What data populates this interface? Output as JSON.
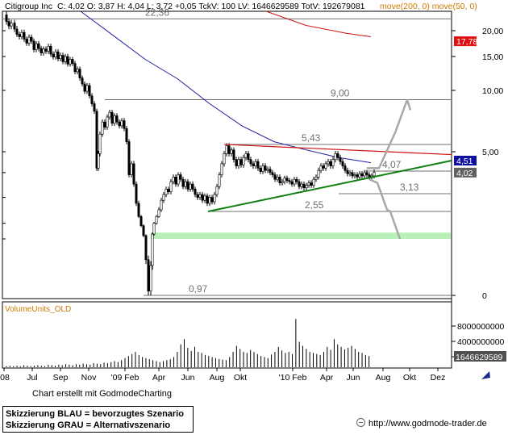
{
  "header": {
    "symbol": "Citigroup Inc",
    "quote": "C: 4,02 O: 3,87 H: 4,04 L: 3,72 +0,05 TckV: 100 LV: 1646629589 TotV: 192679081",
    "indicators": "move(200, 0) move(50, 0)",
    "indicator_color": "#d07a00"
  },
  "chart_data": {
    "type": "candlestick",
    "title": "Citigroup Inc",
    "x_ticks": [
      "'08",
      "Jul",
      "Sep",
      "Nov",
      "'09 Feb",
      "Apr",
      "Jun",
      "Aug",
      "Okt",
      "'10 Feb",
      "Apr",
      "Jun",
      "Aug",
      "Okt",
      "Dez"
    ],
    "y_ticks": [
      "20,00",
      "15,00",
      "10,00",
      "5,00",
      "0"
    ],
    "scale": "log",
    "price_range": [
      0.97,
      24
    ],
    "price_path": [
      [
        0,
        23.2
      ],
      [
        4,
        21.8
      ],
      [
        7,
        20.9
      ],
      [
        10,
        21.5
      ],
      [
        14,
        20.3
      ],
      [
        17,
        19.2
      ],
      [
        20,
        18.7
      ],
      [
        23,
        19.6
      ],
      [
        26,
        18.2
      ],
      [
        29,
        17.4
      ],
      [
        32,
        18.6
      ],
      [
        35,
        17.8
      ],
      [
        38,
        16.2
      ],
      [
        41,
        17.3
      ],
      [
        44,
        16.4
      ],
      [
        47,
        15.6
      ],
      [
        50,
        16.3
      ],
      [
        53,
        15.9
      ],
      [
        56,
        16.8
      ],
      [
        59,
        15.4
      ],
      [
        62,
        14.9
      ],
      [
        65,
        15.8
      ],
      [
        68,
        14.6
      ],
      [
        71,
        15.2
      ],
      [
        74,
        14.1
      ],
      [
        77,
        15.0
      ],
      [
        80,
        13.7
      ],
      [
        83,
        14.5
      ],
      [
        86,
        13.8
      ],
      [
        89,
        12.5
      ],
      [
        92,
        12.9
      ],
      [
        95,
        11.6
      ],
      [
        98,
        10.8
      ],
      [
        101,
        9.9
      ],
      [
        104,
        10.6
      ],
      [
        107,
        9.4
      ],
      [
        110,
        8.6
      ],
      [
        113,
        7.9
      ],
      [
        116,
        4.2
      ],
      [
        118,
        4.9
      ],
      [
        120,
        6.1
      ],
      [
        123,
        7.0
      ],
      [
        126,
        6.6
      ],
      [
        129,
        7.4
      ],
      [
        132,
        7.8
      ],
      [
        135,
        6.9
      ],
      [
        138,
        7.5
      ],
      [
        141,
        7.0
      ],
      [
        144,
        6.7
      ],
      [
        147,
        7.1
      ],
      [
        150,
        6.5
      ],
      [
        153,
        5.6
      ],
      [
        156,
        3.9
      ],
      [
        159,
        4.4
      ],
      [
        162,
        3.5
      ],
      [
        165,
        2.8
      ],
      [
        168,
        2.3
      ],
      [
        171,
        1.9
      ],
      [
        174,
        1.55
      ],
      [
        177,
        1.25
      ],
      [
        180,
        1.0
      ],
      [
        183,
        1.2
      ],
      [
        185,
        1.6
      ],
      [
        187,
        2.0
      ],
      [
        190,
        2.3
      ],
      [
        193,
        2.6
      ],
      [
        196,
        2.9
      ],
      [
        199,
        3.1
      ],
      [
        202,
        3.3
      ],
      [
        205,
        3.2
      ],
      [
        208,
        3.6
      ],
      [
        211,
        3.8
      ],
      [
        214,
        3.5
      ],
      [
        217,
        3.9
      ],
      [
        220,
        3.7
      ],
      [
        223,
        3.4
      ],
      [
        226,
        3.6
      ],
      [
        229,
        3.3
      ],
      [
        232,
        3.5
      ],
      [
        235,
        3.3
      ],
      [
        238,
        3.1
      ],
      [
        241,
        3.0
      ],
      [
        244,
        3.1
      ],
      [
        247,
        2.9
      ],
      [
        250,
        3.05
      ],
      [
        253,
        2.8
      ],
      [
        256,
        3.0
      ],
      [
        259,
        2.85
      ],
      [
        262,
        3.1
      ],
      [
        265,
        3.4
      ],
      [
        268,
        3.9
      ],
      [
        271,
        4.4
      ],
      [
        274,
        4.9
      ],
      [
        277,
        5.35
      ],
      [
        280,
        4.9
      ],
      [
        283,
        5.1
      ],
      [
        286,
        4.6
      ],
      [
        289,
        4.3
      ],
      [
        292,
        4.6
      ],
      [
        295,
        4.35
      ],
      [
        298,
        4.7
      ],
      [
        301,
        4.9
      ],
      [
        304,
        4.6
      ],
      [
        307,
        4.4
      ],
      [
        310,
        4.3
      ],
      [
        313,
        4.5
      ],
      [
        316,
        4.2
      ],
      [
        319,
        4.05
      ],
      [
        322,
        4.3
      ],
      [
        325,
        4.1
      ],
      [
        328,
        4.15
      ],
      [
        331,
        4.0
      ],
      [
        334,
        3.9
      ],
      [
        337,
        3.7
      ],
      [
        340,
        3.8
      ],
      [
        343,
        3.55
      ],
      [
        346,
        3.6
      ],
      [
        349,
        3.75
      ],
      [
        352,
        3.65
      ],
      [
        355,
        3.6
      ],
      [
        358,
        3.5
      ],
      [
        361,
        3.7
      ],
      [
        364,
        3.6
      ],
      [
        367,
        3.4
      ],
      [
        370,
        3.5
      ],
      [
        373,
        3.35
      ],
      [
        376,
        3.45
      ],
      [
        379,
        3.55
      ],
      [
        382,
        3.45
      ],
      [
        385,
        3.7
      ],
      [
        388,
        3.8
      ],
      [
        391,
        4.1
      ],
      [
        394,
        4.3
      ],
      [
        397,
        4.2
      ],
      [
        400,
        4.4
      ],
      [
        403,
        4.5
      ],
      [
        406,
        4.3
      ],
      [
        409,
        4.6
      ],
      [
        412,
        4.9
      ],
      [
        415,
        4.7
      ],
      [
        418,
        4.5
      ],
      [
        421,
        4.3
      ],
      [
        424,
        4.1
      ],
      [
        427,
        3.95
      ],
      [
        430,
        4.0
      ],
      [
        433,
        3.85
      ],
      [
        436,
        3.9
      ],
      [
        439,
        3.8
      ],
      [
        442,
        3.95
      ],
      [
        445,
        3.85
      ],
      [
        448,
        4.0
      ],
      [
        451,
        3.9
      ],
      [
        454,
        3.8
      ],
      [
        457,
        3.85
      ],
      [
        460,
        4.02
      ]
    ],
    "moving_averages": [
      {
        "name": "move(200, 0)",
        "color": "#d01010",
        "points": [
          [
            330,
            24.0
          ],
          [
            380,
            21.0
          ],
          [
            430,
            19.4
          ],
          [
            460,
            18.7
          ]
        ]
      },
      {
        "name": "move(50, 0)",
        "color": "#2020a0",
        "points": [
          [
            100,
            24.0
          ],
          [
            140,
            19.0
          ],
          [
            180,
            14.5
          ],
          [
            220,
            11.5
          ],
          [
            260,
            8.6
          ],
          [
            300,
            6.7
          ],
          [
            340,
            5.6
          ],
          [
            380,
            5.1
          ],
          [
            420,
            4.7
          ],
          [
            460,
            4.45
          ]
        ]
      }
    ],
    "horizontal_levels": [
      {
        "value": 22.36,
        "label": "22,36"
      },
      {
        "value": 9.0,
        "label": "9,00"
      },
      {
        "value": 5.43,
        "label": "5,43"
      },
      {
        "value": 4.07,
        "label": "4,07"
      },
      {
        "value": 3.13,
        "label": "3,13"
      },
      {
        "value": 2.55,
        "label": "2,55"
      },
      {
        "value": 0.97,
        "label": "0,97"
      }
    ],
    "price_tags": [
      {
        "value": 17.78,
        "label": "17,78",
        "bg": "#e01010"
      },
      {
        "value": 4.51,
        "label": "4,51",
        "bg": "#1010a0"
      },
      {
        "value": 4.02,
        "label": "4,02",
        "bg": "#606060"
      }
    ],
    "trendlines": [
      {
        "name": "resistance",
        "color": "#d01010",
        "points": [
          [
            278,
            5.43
          ],
          [
            560,
            4.85
          ]
        ]
      },
      {
        "name": "support",
        "color": "#108010",
        "points": [
          [
            258,
            2.55
          ],
          [
            560,
            4.55
          ]
        ]
      }
    ],
    "zone": {
      "low": 1.45,
      "high": 1.65,
      "color": "#b8f0b8"
    },
    "scenarios": {
      "blue": {
        "color": "#a8a8a8",
        "points": [
          [
            455,
            4.2
          ],
          [
            480,
            4.8
          ],
          [
            505,
            9.0
          ]
        ]
      },
      "grey": {
        "color": "#a8a8a8",
        "points": [
          [
            458,
            3.9
          ],
          [
            480,
            2.55
          ],
          [
            496,
            1.45
          ]
        ]
      }
    },
    "volume": {
      "label": "VolumeUnits_OLD",
      "y_ticks": [
        "8000000000",
        "4000000000",
        "1646629589"
      ],
      "bars": [
        0.02,
        0.03,
        0.02,
        0.03,
        0.02,
        0.04,
        0.03,
        0.02,
        0.03,
        0.04,
        0.03,
        0.02,
        0.05,
        0.04,
        0.03,
        0.05,
        0.04,
        0.06,
        0.05,
        0.04,
        0.06,
        0.05,
        0.07,
        0.06,
        0.05,
        0.08,
        0.07,
        0.06,
        0.09,
        0.08,
        0.1,
        0.12,
        0.1,
        0.14,
        0.18,
        0.22,
        0.26,
        0.3,
        0.24,
        0.2,
        0.18,
        0.16,
        0.14,
        0.12,
        0.1,
        0.12,
        0.14,
        0.16,
        0.2,
        0.3,
        0.45,
        0.55,
        0.38,
        0.32,
        0.4,
        0.3,
        0.28,
        0.24,
        0.22,
        0.2,
        0.18,
        0.16,
        0.15,
        0.14,
        0.2,
        0.3,
        0.42,
        0.36,
        0.3,
        0.28,
        0.34,
        0.3,
        0.26,
        0.22,
        0.2,
        0.18,
        0.25,
        0.3,
        0.4,
        0.33,
        0.28,
        0.3,
        0.26,
        0.95,
        0.5,
        0.42,
        0.36,
        0.3,
        0.28,
        0.26,
        0.24,
        0.3,
        0.4,
        0.34,
        0.55,
        0.45,
        0.4,
        0.35,
        0.38,
        0.42,
        0.36,
        0.3,
        0.28,
        0.24,
        0.22
      ]
    }
  },
  "footer": {
    "caption": "Chart erstellt mit GodmodeCharting",
    "legend_blue": "Skizzierung BLAU = bevorzugtes Szenario",
    "legend_grey": "Skizzierung GRAU = Alternativszenario",
    "site": "http://www.godmode-trader.de"
  }
}
